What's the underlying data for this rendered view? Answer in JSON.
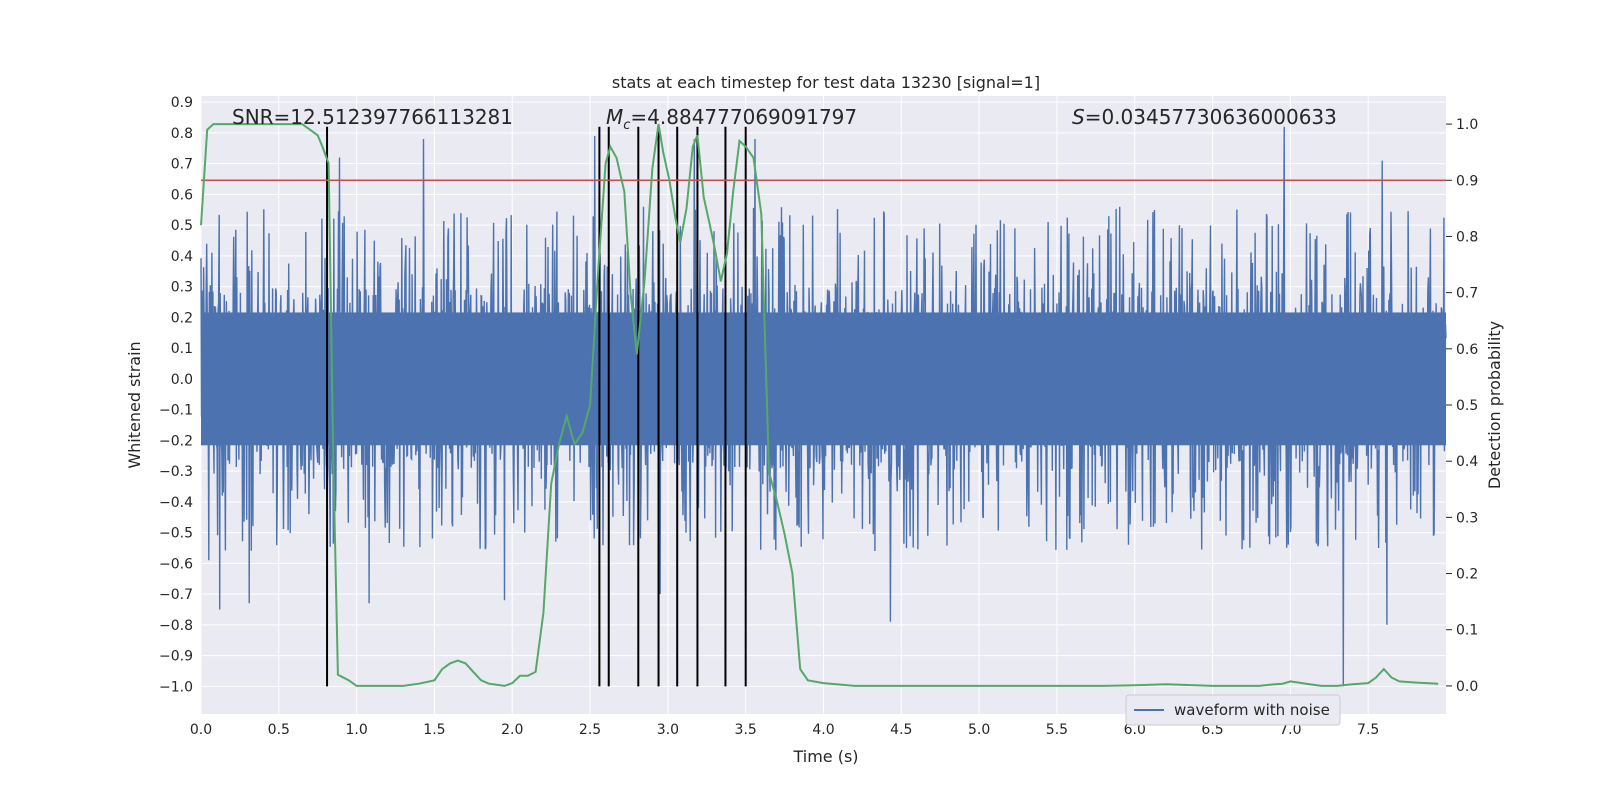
{
  "chart_data": {
    "type": "line",
    "title": "stats at each timestep for test data 13230 [signal=1]",
    "xlabel": "Time (s)",
    "ylabel_left": "Whitened strain",
    "ylabel_right": "Detection probability",
    "xlim": [
      0.0,
      8.0
    ],
    "ylim_left": [
      -1.09,
      0.92
    ],
    "ylim_right": [
      -0.05,
      1.05
    ],
    "x_ticks": [
      "0.0",
      "0.5",
      "1.0",
      "1.5",
      "2.0",
      "2.5",
      "3.0",
      "3.5",
      "4.0",
      "4.5",
      "5.0",
      "5.5",
      "6.0",
      "6.5",
      "7.0",
      "7.5"
    ],
    "y_left_ticks": [
      "0.9",
      "0.8",
      "0.7",
      "0.6",
      "0.5",
      "0.4",
      "0.3",
      "0.2",
      "0.1",
      "0.0",
      "−0.1",
      "−0.2",
      "−0.3",
      "−0.4",
      "−0.5",
      "−0.6",
      "−0.7",
      "−0.8",
      "−0.9",
      "−1.0"
    ],
    "y_right_ticks": [
      "0.0",
      "0.1",
      "0.2",
      "0.3",
      "0.4",
      "0.5",
      "0.6",
      "0.7",
      "0.8",
      "0.9",
      "1.0"
    ],
    "grid": true,
    "legend": {
      "position": "lower-right",
      "entries": [
        "waveform with noise"
      ]
    },
    "annotations": {
      "snr": "SNR=12.512397766113281",
      "mc_symbol": "M",
      "mc_sub": "c",
      "mc_value": "=4.884777069091797",
      "s_symbol": "S",
      "s_value": "=0.03457730636000633"
    },
    "threshold": {
      "axis": "right",
      "value": 0.9
    },
    "event_markers_x": [
      0.81,
      2.56,
      2.62,
      2.81,
      2.94,
      3.06,
      3.19,
      3.37,
      3.5
    ],
    "event_marker_yrange": [
      -1.0,
      0.82
    ],
    "waveform": {
      "name": "waveform with noise",
      "axis": "left",
      "x_range": [
        0.0,
        8.0
      ],
      "typical_peak": 0.4,
      "inner_envelope": 0.27,
      "notable_peaks": [
        {
          "x": 0.05,
          "y": -0.59
        },
        {
          "x": 0.12,
          "y": -0.75
        },
        {
          "x": 0.31,
          "y": -0.73
        },
        {
          "x": 0.89,
          "y": 0.72
        },
        {
          "x": 1.08,
          "y": -0.73
        },
        {
          "x": 1.43,
          "y": 0.78
        },
        {
          "x": 1.95,
          "y": -0.72
        },
        {
          "x": 2.53,
          "y": 0.79
        },
        {
          "x": 2.95,
          "y": -0.7
        },
        {
          "x": 3.17,
          "y": 0.78
        },
        {
          "x": 3.56,
          "y": 0.78
        },
        {
          "x": 4.43,
          "y": -0.79
        },
        {
          "x": 6.96,
          "y": 0.82
        },
        {
          "x": 7.34,
          "y": -1.0
        },
        {
          "x": 7.59,
          "y": 0.71
        },
        {
          "x": 7.62,
          "y": -0.8
        }
      ]
    },
    "probability": {
      "axis": "right",
      "x": [
        0.0,
        0.04,
        0.08,
        0.15,
        0.25,
        0.4,
        0.55,
        0.65,
        0.7,
        0.75,
        0.78,
        0.82,
        0.85,
        0.88,
        0.95,
        1.0,
        1.1,
        1.2,
        1.3,
        1.4,
        1.5,
        1.55,
        1.6,
        1.65,
        1.7,
        1.75,
        1.8,
        1.85,
        1.9,
        1.95,
        2.0,
        2.05,
        2.1,
        2.15,
        2.2,
        2.25,
        2.3,
        2.35,
        2.4,
        2.45,
        2.5,
        2.55,
        2.6,
        2.63,
        2.67,
        2.72,
        2.76,
        2.8,
        2.85,
        2.9,
        2.94,
        2.97,
        3.01,
        3.05,
        3.08,
        3.12,
        3.16,
        3.19,
        3.23,
        3.27,
        3.3,
        3.34,
        3.38,
        3.42,
        3.46,
        3.5,
        3.55,
        3.6,
        3.65,
        3.7,
        3.75,
        3.8,
        3.85,
        3.9,
        4.0,
        4.2,
        4.5,
        4.8,
        5.0,
        5.2,
        5.5,
        5.8,
        6.0,
        6.2,
        6.5,
        6.7,
        6.8,
        6.9,
        6.95,
        7.0,
        7.05,
        7.1,
        7.2,
        7.3,
        7.4,
        7.5,
        7.55,
        7.6,
        7.65,
        7.7,
        7.8,
        7.95
      ],
      "y": [
        0.82,
        0.99,
        1.0,
        1.0,
        1.0,
        1.0,
        1.0,
        1.0,
        0.99,
        0.98,
        0.96,
        0.93,
        0.4,
        0.02,
        0.01,
        0.0,
        0.0,
        0.0,
        0.0,
        0.004,
        0.01,
        0.03,
        0.04,
        0.045,
        0.04,
        0.025,
        0.01,
        0.004,
        0.002,
        0.0,
        0.005,
        0.018,
        0.018,
        0.025,
        0.13,
        0.36,
        0.43,
        0.48,
        0.43,
        0.45,
        0.5,
        0.73,
        0.93,
        0.96,
        0.94,
        0.88,
        0.7,
        0.59,
        0.72,
        0.92,
        1.0,
        0.95,
        0.9,
        0.83,
        0.79,
        0.85,
        0.96,
        0.98,
        0.87,
        0.82,
        0.78,
        0.72,
        0.77,
        0.88,
        0.97,
        0.96,
        0.94,
        0.84,
        0.38,
        0.33,
        0.27,
        0.2,
        0.03,
        0.01,
        0.005,
        0.0,
        0.0,
        0.0,
        0.0,
        0.0,
        0.0,
        0.0,
        0.001,
        0.003,
        0.0,
        0.0,
        0.0,
        0.003,
        0.004,
        0.008,
        0.006,
        0.004,
        0.0,
        0.0,
        0.003,
        0.005,
        0.015,
        0.03,
        0.015,
        0.008,
        0.006,
        0.004
      ]
    },
    "colors": {
      "waveform": "#4c72b0",
      "probability": "#55a868",
      "threshold": "#c44e52",
      "markers": "#000000",
      "plot_bg": "#eaeaf2",
      "grid": "#ffffff"
    }
  }
}
